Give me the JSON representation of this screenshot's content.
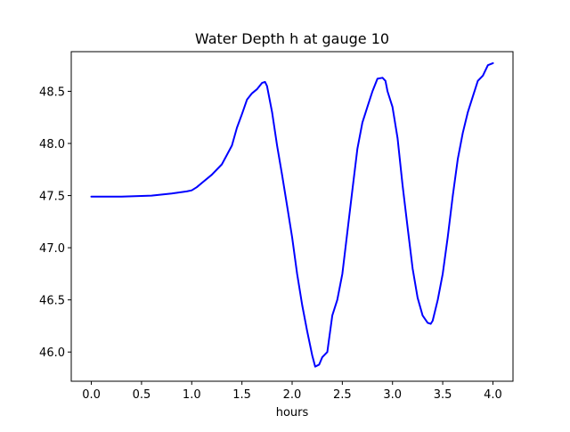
{
  "chart_data": {
    "type": "line",
    "title": "Water Depth h at gauge 10",
    "xlabel": "hours",
    "ylabel": "",
    "xlim": [
      -0.2,
      4.2
    ],
    "ylim": [
      45.72,
      48.88
    ],
    "xticks": [
      0.0,
      0.5,
      1.0,
      1.5,
      2.0,
      2.5,
      3.0,
      3.5,
      4.0
    ],
    "xtick_labels": [
      "0.0",
      "0.5",
      "1.0",
      "1.5",
      "2.0",
      "2.5",
      "3.0",
      "3.5",
      "4.0"
    ],
    "yticks": [
      46.0,
      46.5,
      47.0,
      47.5,
      48.0,
      48.5
    ],
    "ytick_labels": [
      "46.0",
      "46.5",
      "47.0",
      "47.5",
      "48.0",
      "48.5"
    ],
    "grid": false,
    "series": [
      {
        "color": "#0000ff",
        "x": [
          0.0,
          0.3,
          0.6,
          0.8,
          0.95,
          1.0,
          1.05,
          1.1,
          1.2,
          1.3,
          1.4,
          1.45,
          1.5,
          1.55,
          1.6,
          1.65,
          1.7,
          1.73,
          1.75,
          1.8,
          1.85,
          1.9,
          1.95,
          2.0,
          2.05,
          2.1,
          2.15,
          2.2,
          2.23,
          2.27,
          2.3,
          2.35,
          2.4,
          2.45,
          2.5,
          2.55,
          2.6,
          2.65,
          2.7,
          2.75,
          2.8,
          2.85,
          2.9,
          2.93,
          2.95,
          3.0,
          3.05,
          3.1,
          3.15,
          3.2,
          3.25,
          3.3,
          3.35,
          3.38,
          3.4,
          3.45,
          3.5,
          3.55,
          3.6,
          3.65,
          3.7,
          3.75,
          3.8,
          3.85,
          3.9,
          3.95,
          4.0
        ],
        "y": [
          47.49,
          47.49,
          47.5,
          47.52,
          47.54,
          47.55,
          47.58,
          47.62,
          47.7,
          47.8,
          47.98,
          48.15,
          48.28,
          48.42,
          48.48,
          48.52,
          48.58,
          48.59,
          48.55,
          48.3,
          47.98,
          47.7,
          47.4,
          47.1,
          46.75,
          46.45,
          46.2,
          45.97,
          45.86,
          45.88,
          45.95,
          46.0,
          46.35,
          46.5,
          46.75,
          47.15,
          47.55,
          47.95,
          48.2,
          48.35,
          48.5,
          48.62,
          48.63,
          48.6,
          48.5,
          48.35,
          48.05,
          47.6,
          47.2,
          46.8,
          46.52,
          46.35,
          46.28,
          46.27,
          46.3,
          46.5,
          46.75,
          47.1,
          47.5,
          47.85,
          48.1,
          48.3,
          48.45,
          48.6,
          48.65,
          48.75,
          48.77
        ]
      }
    ]
  }
}
